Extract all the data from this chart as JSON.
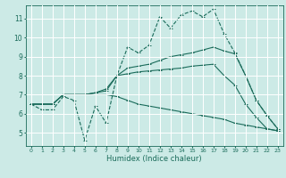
{
  "title": "",
  "xlabel": "Humidex (Indice chaleur)",
  "ylabel": "",
  "bg_color": "#cceae6",
  "grid_color": "#ffffff",
  "line_color": "#1a6b5a",
  "x_ticks": [
    0,
    1,
    2,
    3,
    4,
    5,
    6,
    7,
    8,
    9,
    10,
    11,
    12,
    13,
    14,
    15,
    16,
    17,
    18,
    19,
    20,
    21,
    22,
    23
  ],
  "y_ticks": [
    5,
    6,
    7,
    8,
    9,
    10,
    11
  ],
  "xlim": [
    -0.5,
    23.5
  ],
  "ylim": [
    4.3,
    11.7
  ],
  "series": {
    "line1_wiggly": [
      6.5,
      6.2,
      6.2,
      6.9,
      6.7,
      4.6,
      6.4,
      5.5,
      8.0,
      9.5,
      9.2,
      9.6,
      11.1,
      10.5,
      11.2,
      11.4,
      11.1,
      11.5,
      10.2,
      9.2,
      8.0,
      6.7,
      5.9,
      5.2
    ],
    "line2_upper": [
      6.5,
      6.5,
      6.5,
      7.0,
      7.0,
      7.0,
      7.1,
      7.2,
      8.0,
      8.4,
      8.5,
      8.6,
      8.8,
      9.0,
      9.1,
      9.2,
      9.35,
      9.5,
      9.3,
      9.15,
      8.0,
      6.7,
      5.9,
      5.2
    ],
    "line3_mid": [
      6.5,
      6.5,
      6.5,
      7.0,
      7.0,
      7.0,
      7.1,
      7.3,
      8.0,
      8.1,
      8.2,
      8.25,
      8.3,
      8.35,
      8.4,
      8.5,
      8.55,
      8.6,
      8.0,
      7.5,
      6.5,
      5.8,
      5.2,
      5.1
    ],
    "line4_lower": [
      6.5,
      6.5,
      6.5,
      7.0,
      7.0,
      7.0,
      7.0,
      7.0,
      6.9,
      6.7,
      6.5,
      6.4,
      6.3,
      6.2,
      6.1,
      6.0,
      5.9,
      5.8,
      5.7,
      5.5,
      5.4,
      5.3,
      5.2,
      5.1
    ]
  }
}
